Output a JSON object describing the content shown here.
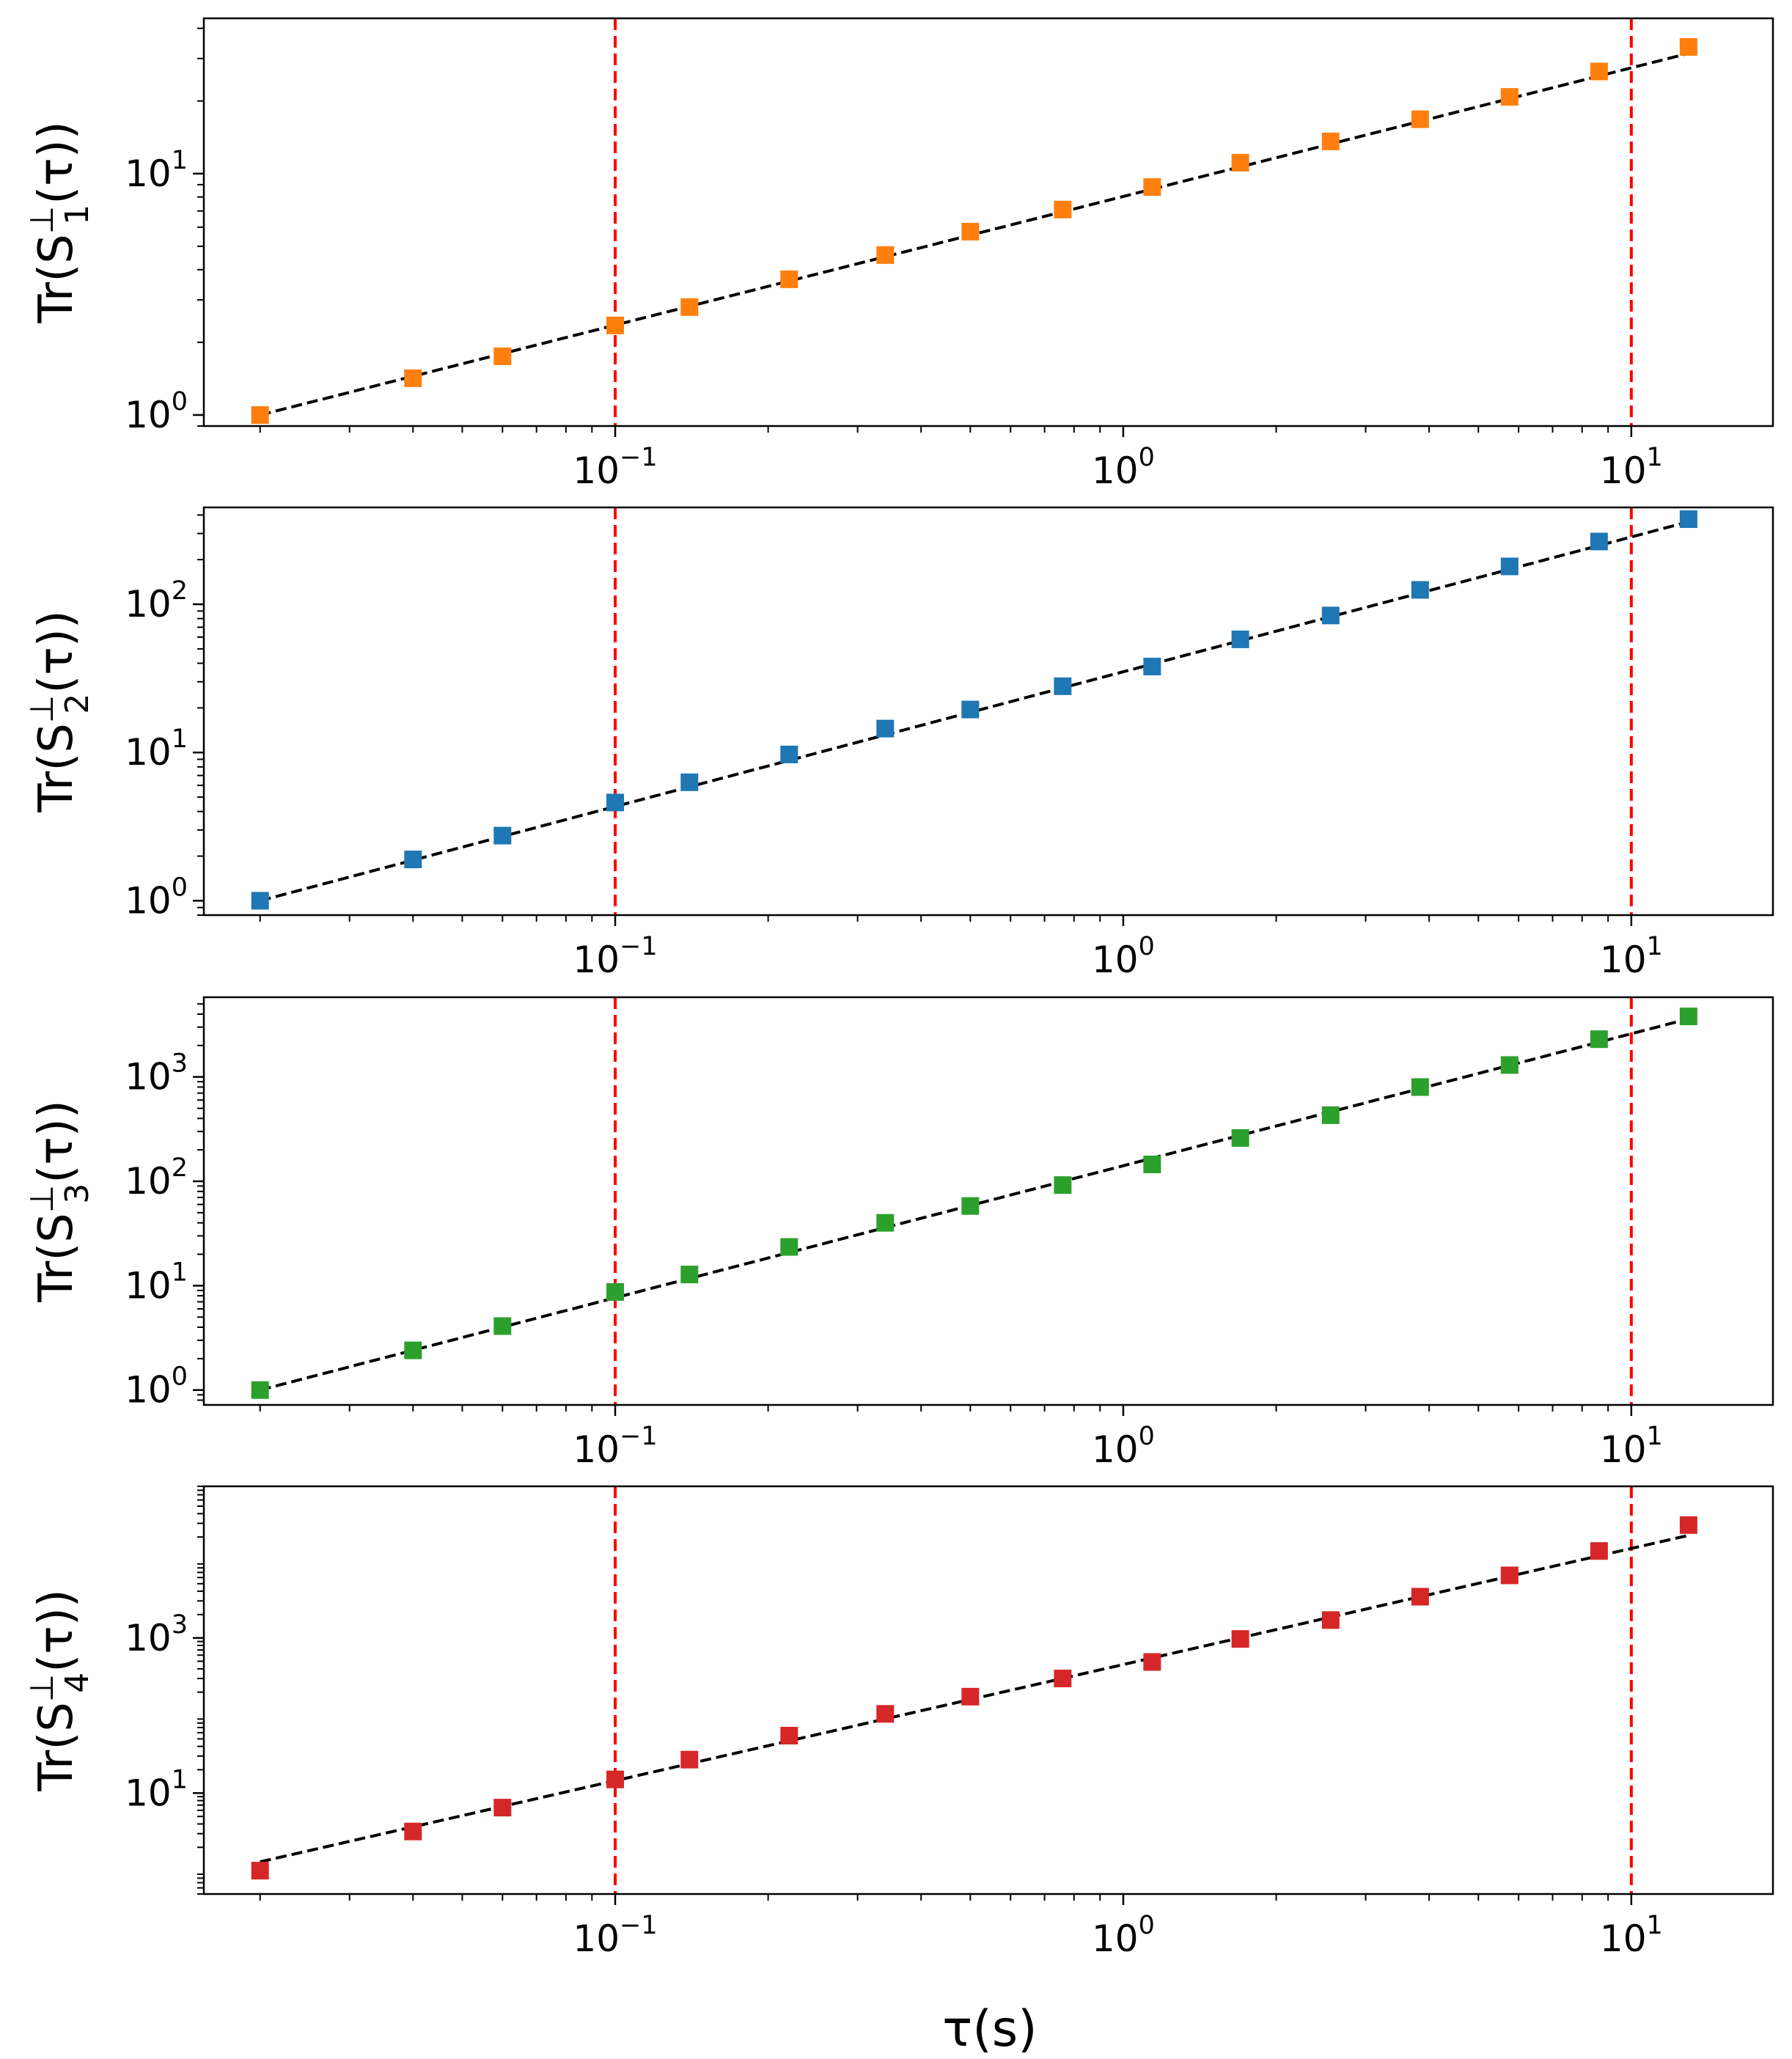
{
  "chart_data": [
    {
      "type": "scatter",
      "panel": 1,
      "ylabel_prefix": "Tr(S",
      "ylabel_sub": "1",
      "ylabel_sup": "⊥",
      "ylabel_suffix": "(τ))",
      "xlim": [
        0.0155,
        19.0
      ],
      "ylim": [
        0.9,
        44
      ],
      "x_ticks": [
        {
          "base": "10",
          "exp": "−1",
          "value": 0.1
        },
        {
          "base": "10",
          "exp": "0",
          "value": 1
        },
        {
          "base": "10",
          "exp": "1",
          "value": 10
        }
      ],
      "y_ticks": [
        {
          "base": "10",
          "exp": "0",
          "value": 1
        },
        {
          "base": "10",
          "exp": "1",
          "value": 10
        }
      ],
      "marker_color": "#ff7f0e",
      "series": [
        {
          "name": "data",
          "x": [
            0.02,
            0.04,
            0.06,
            0.1,
            0.14,
            0.22,
            0.34,
            0.5,
            0.76,
            1.14,
            1.7,
            2.56,
            3.84,
            5.76,
            8.64,
            12.96
          ],
          "y": [
            1.0,
            1.42,
            1.75,
            2.35,
            2.8,
            3.65,
            4.6,
            5.75,
            7.1,
            8.8,
            11.1,
            13.6,
            16.8,
            20.8,
            26.5,
            33.5
          ]
        }
      ],
      "fit": {
        "x": [
          0.02,
          12.96
        ],
        "y": [
          1.0,
          31.5
        ]
      },
      "vlines": [
        0.1,
        10
      ]
    },
    {
      "type": "scatter",
      "panel": 2,
      "ylabel_prefix": "Tr(S",
      "ylabel_sub": "2",
      "ylabel_sup": "⊥",
      "ylabel_suffix": "(τ))",
      "xlim": [
        0.0155,
        19.0
      ],
      "ylim": [
        0.8,
        450
      ],
      "x_ticks": [
        {
          "base": "10",
          "exp": "−1",
          "value": 0.1
        },
        {
          "base": "10",
          "exp": "0",
          "value": 1
        },
        {
          "base": "10",
          "exp": "1",
          "value": 10
        }
      ],
      "y_ticks": [
        {
          "base": "10",
          "exp": "0",
          "value": 1
        },
        {
          "base": "10",
          "exp": "1",
          "value": 10
        },
        {
          "base": "10",
          "exp": "2",
          "value": 100
        }
      ],
      "marker_color": "#1f77b4",
      "series": [
        {
          "name": "data",
          "x": [
            0.02,
            0.04,
            0.06,
            0.1,
            0.14,
            0.22,
            0.34,
            0.5,
            0.76,
            1.14,
            1.7,
            2.56,
            3.84,
            5.76,
            8.64,
            12.96
          ],
          "y": [
            1.0,
            1.9,
            2.75,
            4.6,
            6.3,
            9.7,
            14.5,
            19.5,
            28,
            38,
            58,
            84,
            125,
            180,
            265,
            375
          ]
        }
      ],
      "fit": {
        "x": [
          0.02,
          12.96
        ],
        "y": [
          1.0,
          360
        ]
      },
      "vlines": [
        0.1,
        10
      ]
    },
    {
      "type": "scatter",
      "panel": 3,
      "ylabel_prefix": "Tr(S",
      "ylabel_sub": "3",
      "ylabel_sup": "⊥",
      "ylabel_suffix": "(τ))",
      "xlim": [
        0.0155,
        19.0
      ],
      "ylim": [
        0.72,
        5800
      ],
      "x_ticks": [
        {
          "base": "10",
          "exp": "−1",
          "value": 0.1
        },
        {
          "base": "10",
          "exp": "0",
          "value": 1
        },
        {
          "base": "10",
          "exp": "1",
          "value": 10
        }
      ],
      "y_ticks": [
        {
          "base": "10",
          "exp": "0",
          "value": 1
        },
        {
          "base": "10",
          "exp": "1",
          "value": 10
        },
        {
          "base": "10",
          "exp": "2",
          "value": 100
        },
        {
          "base": "10",
          "exp": "3",
          "value": 1000
        }
      ],
      "marker_color": "#2ca02c",
      "series": [
        {
          "name": "data",
          "x": [
            0.02,
            0.04,
            0.06,
            0.1,
            0.14,
            0.22,
            0.34,
            0.5,
            0.76,
            1.14,
            1.7,
            2.56,
            3.84,
            5.76,
            8.64,
            12.96
          ],
          "y": [
            1.0,
            2.4,
            4.1,
            8.7,
            12.8,
            23.5,
            40,
            58,
            92,
            145,
            260,
            430,
            800,
            1300,
            2300,
            3800
          ]
        }
      ],
      "fit": {
        "x": [
          0.02,
          12.96
        ],
        "y": [
          1.0,
          3600
        ]
      },
      "vlines": [
        0.1,
        10
      ]
    },
    {
      "type": "scatter",
      "panel": 4,
      "ylabel_prefix": "Tr(S",
      "ylabel_sub": "4",
      "ylabel_sup": "⊥",
      "ylabel_suffix": "(τ))",
      "xlim": [
        0.0155,
        19.0
      ],
      "ylim": [
        0.5,
        90000
      ],
      "x_ticks": [
        {
          "base": "10",
          "exp": "−1",
          "value": 0.1
        },
        {
          "base": "10",
          "exp": "0",
          "value": 1
        },
        {
          "base": "10",
          "exp": "1",
          "value": 10
        }
      ],
      "y_ticks": [
        {
          "base": "10",
          "exp": "1",
          "value": 10
        },
        {
          "base": "10",
          "exp": "3",
          "value": 1000
        }
      ],
      "marker_color": "#d62728",
      "series": [
        {
          "name": "data",
          "x": [
            0.02,
            0.04,
            0.06,
            0.1,
            0.14,
            0.22,
            0.34,
            0.5,
            0.76,
            1.14,
            1.7,
            2.56,
            3.84,
            5.76,
            8.64,
            12.96
          ],
          "y": [
            1.0,
            3.2,
            6.5,
            15,
            27,
            55,
            105,
            175,
            300,
            490,
            970,
            1700,
            3400,
            6400,
            13200,
            28500
          ]
        }
      ],
      "fit": {
        "x": [
          0.02,
          12.96
        ],
        "y": [
          1.3,
          21000
        ]
      },
      "vlines": [
        0.1,
        10
      ]
    }
  ],
  "xlabel": "τ(s)",
  "colors": {
    "fit_line": "#000000",
    "vline": "#ff0000",
    "axes": "#000000",
    "background": "#ffffff"
  }
}
